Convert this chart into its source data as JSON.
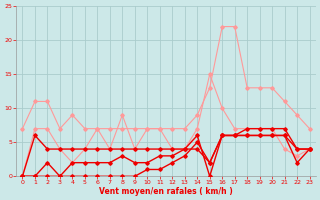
{
  "x": [
    0,
    1,
    2,
    3,
    4,
    5,
    6,
    7,
    8,
    9,
    10,
    11,
    12,
    13,
    14,
    15,
    16,
    17,
    18,
    19,
    20,
    21,
    22,
    23
  ],
  "series_light1": [
    7,
    11,
    11,
    7,
    9,
    7,
    7,
    7,
    7,
    7,
    7,
    7,
    7,
    7,
    9,
    13,
    22,
    22,
    13,
    13,
    13,
    11,
    9,
    7
  ],
  "series_light2": [
    0,
    7,
    7,
    4,
    2,
    4,
    7,
    4,
    9,
    4,
    7,
    7,
    4,
    4,
    7,
    15,
    10,
    7,
    7,
    7,
    7,
    4,
    3,
    4
  ],
  "series_dark1": [
    0,
    6,
    4,
    4,
    4,
    4,
    4,
    4,
    4,
    4,
    4,
    4,
    4,
    4,
    6,
    0,
    6,
    6,
    7,
    7,
    7,
    7,
    4,
    4
  ],
  "series_dark2": [
    0,
    0,
    2,
    0,
    2,
    2,
    2,
    2,
    3,
    2,
    2,
    3,
    3,
    4,
    4,
    2,
    6,
    6,
    6,
    6,
    6,
    6,
    2,
    4
  ],
  "series_dark3": [
    0,
    0,
    0,
    0,
    0,
    0,
    0,
    0,
    0,
    0,
    1,
    1,
    2,
    3,
    5,
    2,
    6,
    6,
    6,
    6,
    6,
    6,
    4,
    4
  ],
  "color_dark": "#ee0000",
  "color_light": "#ff9999",
  "bg_color": "#cce8e8",
  "grid_color": "#aacccc",
  "xlabel": "Vent moyen/en rafales ( km/h )",
  "ylim": [
    0,
    25
  ],
  "xlim": [
    -0.5,
    23.5
  ],
  "yticks": [
    0,
    5,
    10,
    15,
    20,
    25
  ]
}
